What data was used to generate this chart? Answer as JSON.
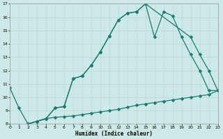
{
  "xlabel": "Humidex (Indice chaleur)",
  "background_color": "#cce9e8",
  "line_color": "#1a7a6e",
  "grid_color": "#b8d8d6",
  "xlim": [
    0,
    23
  ],
  "ylim": [
    8,
    17
  ],
  "xticks": [
    0,
    1,
    2,
    3,
    4,
    5,
    6,
    7,
    8,
    9,
    10,
    11,
    12,
    13,
    14,
    15,
    16,
    17,
    18,
    19,
    20,
    21,
    22,
    23
  ],
  "yticks": [
    8,
    9,
    10,
    11,
    12,
    13,
    14,
    15,
    16,
    17
  ],
  "line1_x": [
    0,
    1,
    2,
    3,
    4,
    5,
    6,
    7,
    8,
    9,
    10,
    11,
    12,
    13,
    14,
    15,
    16,
    17,
    18,
    19,
    20,
    21,
    22,
    23
  ],
  "line1_y": [
    10.7,
    9.2,
    8.0,
    8.2,
    8.4,
    8.5,
    8.55,
    8.6,
    8.7,
    8.8,
    8.9,
    9.0,
    9.1,
    9.25,
    9.4,
    9.5,
    9.6,
    9.7,
    9.8,
    9.9,
    10.0,
    10.1,
    10.2,
    10.5
  ],
  "line2_x": [
    2,
    3,
    4,
    5,
    6,
    7,
    8,
    9,
    10,
    11,
    12,
    13,
    14,
    15,
    20,
    21,
    22,
    23
  ],
  "line2_y": [
    8.0,
    8.2,
    8.4,
    9.2,
    9.3,
    11.4,
    11.6,
    12.4,
    13.4,
    14.6,
    15.8,
    16.3,
    16.4,
    17.0,
    14.5,
    13.2,
    12.0,
    10.5
  ],
  "line3_x": [
    2,
    3,
    4,
    5,
    6,
    7,
    8,
    9,
    10,
    11,
    12,
    13,
    14,
    15,
    16,
    17,
    18,
    19,
    20,
    21,
    22,
    23
  ],
  "line3_y": [
    8.0,
    8.2,
    8.4,
    9.2,
    9.3,
    11.4,
    11.6,
    12.4,
    13.4,
    14.6,
    15.8,
    16.3,
    16.4,
    17.0,
    14.5,
    16.4,
    16.1,
    14.5,
    13.2,
    12.0,
    10.5,
    10.5
  ]
}
